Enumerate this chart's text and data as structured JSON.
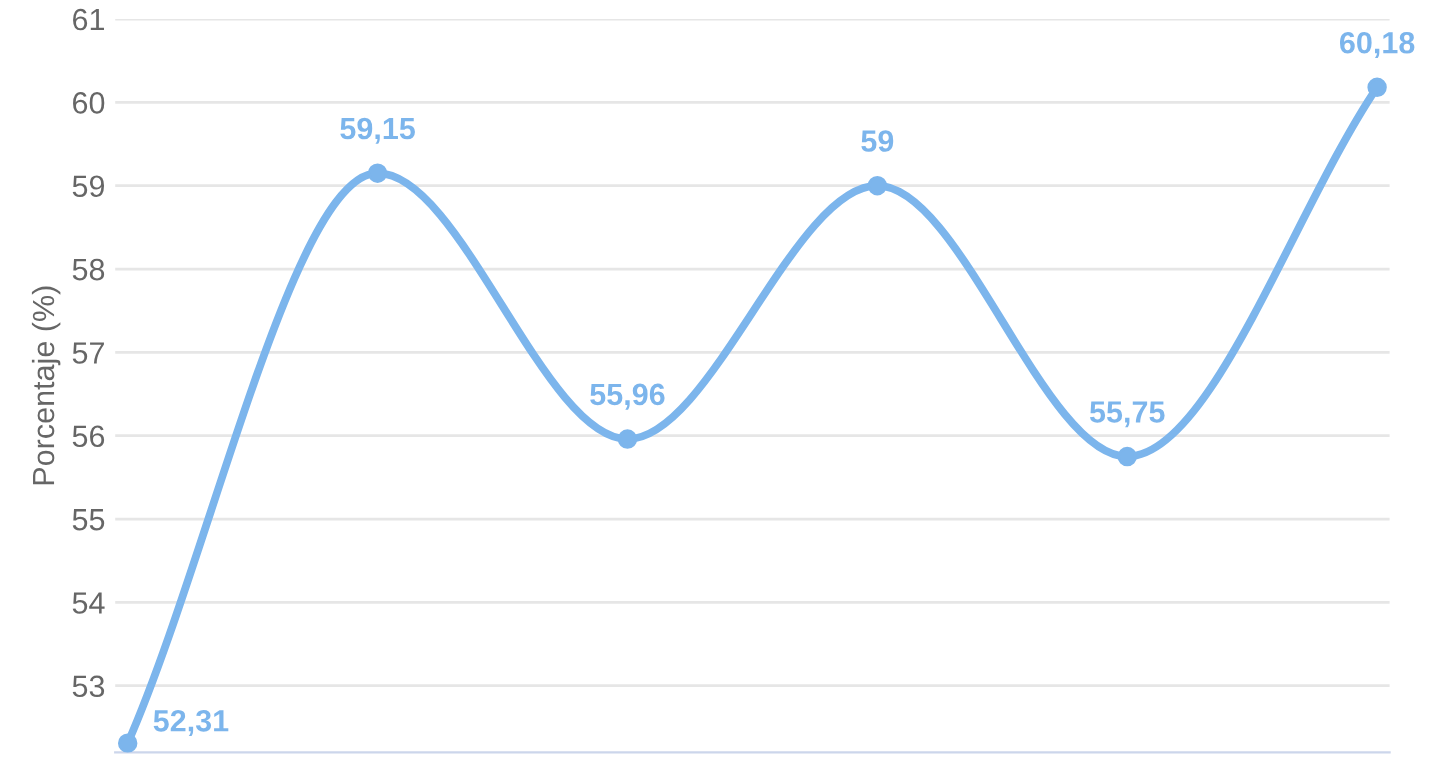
{
  "chart_data": {
    "type": "line",
    "ylabel": "Porcentaje (%)",
    "categories": [
      null,
      null,
      null,
      null,
      null,
      null
    ],
    "series": [
      {
        "color": "#7cb5ec",
        "values": [
          52.31,
          59.15,
          55.96,
          59,
          55.75,
          60.18
        ],
        "value_labels": [
          "52,31",
          "59,15",
          "55,96",
          "59",
          "55,75",
          "60,18"
        ]
      }
    ],
    "ylim": [
      52.2,
      61
    ],
    "yticks": [
      53,
      54,
      55,
      56,
      57,
      58,
      59,
      60,
      61
    ],
    "grid": "y",
    "marker": "circle",
    "line_style": "solid",
    "legend": false
  }
}
